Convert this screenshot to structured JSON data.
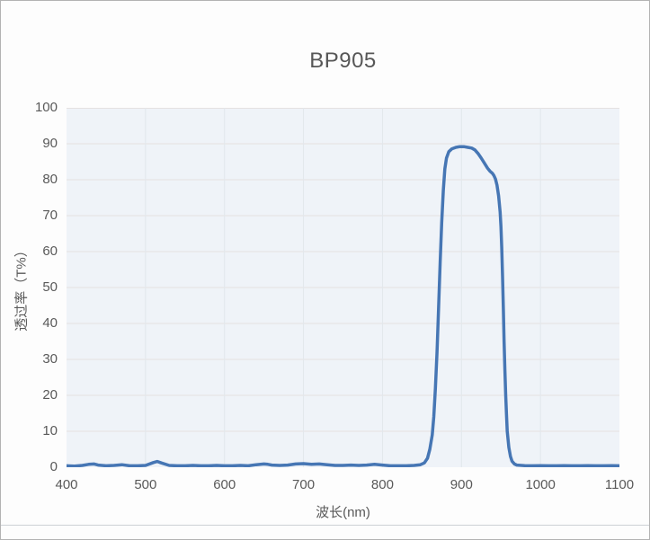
{
  "colors": {
    "line": "#4676b4",
    "plot_bg": "#eff3f8",
    "h_grid": "#e5e1e1",
    "v_grid": "#e2e7ec",
    "text": "#595959",
    "page_border": "#b3b3b3",
    "bottom_rule": "#ccd1d5"
  },
  "chart_data": {
    "type": "line",
    "title": "BP905",
    "xlabel": "波长(nm)",
    "ylabel": "透过率（T%）",
    "xlim": [
      400,
      1100
    ],
    "ylim": [
      0,
      100
    ],
    "x_ticks": [
      400,
      500,
      600,
      700,
      800,
      900,
      1000,
      1100
    ],
    "y_ticks": [
      0,
      10,
      20,
      30,
      40,
      50,
      60,
      70,
      80,
      90,
      100
    ],
    "grid": true,
    "legend": false,
    "series": [
      {
        "name": "BP905 transmittance",
        "points": [
          [
            400,
            0.4
          ],
          [
            410,
            0.3
          ],
          [
            420,
            0.5
          ],
          [
            428,
            0.8
          ],
          [
            435,
            0.9
          ],
          [
            440,
            0.6
          ],
          [
            450,
            0.4
          ],
          [
            460,
            0.5
          ],
          [
            470,
            0.7
          ],
          [
            480,
            0.4
          ],
          [
            490,
            0.4
          ],
          [
            500,
            0.5
          ],
          [
            510,
            1.3
          ],
          [
            515,
            1.6
          ],
          [
            520,
            1.2
          ],
          [
            530,
            0.5
          ],
          [
            540,
            0.4
          ],
          [
            550,
            0.4
          ],
          [
            560,
            0.5
          ],
          [
            570,
            0.4
          ],
          [
            580,
            0.4
          ],
          [
            590,
            0.5
          ],
          [
            600,
            0.4
          ],
          [
            610,
            0.4
          ],
          [
            620,
            0.5
          ],
          [
            630,
            0.4
          ],
          [
            640,
            0.7
          ],
          [
            650,
            0.9
          ],
          [
            655,
            0.8
          ],
          [
            660,
            0.6
          ],
          [
            670,
            0.5
          ],
          [
            680,
            0.6
          ],
          [
            690,
            0.9
          ],
          [
            700,
            1.0
          ],
          [
            710,
            0.8
          ],
          [
            720,
            0.9
          ],
          [
            730,
            0.7
          ],
          [
            740,
            0.5
          ],
          [
            750,
            0.5
          ],
          [
            760,
            0.6
          ],
          [
            770,
            0.5
          ],
          [
            780,
            0.6
          ],
          [
            790,
            0.8
          ],
          [
            800,
            0.6
          ],
          [
            810,
            0.4
          ],
          [
            820,
            0.4
          ],
          [
            830,
            0.4
          ],
          [
            840,
            0.5
          ],
          [
            848,
            0.7
          ],
          [
            853,
            1.2
          ],
          [
            857,
            2.5
          ],
          [
            860,
            5
          ],
          [
            863,
            9
          ],
          [
            865,
            14
          ],
          [
            867,
            22
          ],
          [
            869,
            32
          ],
          [
            871,
            44
          ],
          [
            873,
            57
          ],
          [
            875,
            68
          ],
          [
            877,
            77
          ],
          [
            879,
            83
          ],
          [
            881,
            86
          ],
          [
            884,
            87.8
          ],
          [
            888,
            88.6
          ],
          [
            893,
            89
          ],
          [
            898,
            89.2
          ],
          [
            903,
            89.2
          ],
          [
            908,
            89
          ],
          [
            913,
            88.8
          ],
          [
            917,
            88.3
          ],
          [
            921,
            87.3
          ],
          [
            925,
            86
          ],
          [
            929,
            84.6
          ],
          [
            933,
            83.2
          ],
          [
            936,
            82.4
          ],
          [
            939,
            81.8
          ],
          [
            941,
            81.2
          ],
          [
            943,
            80.2
          ],
          [
            945,
            78.5
          ],
          [
            947,
            75.5
          ],
          [
            949,
            71
          ],
          [
            950,
            67
          ],
          [
            951,
            61
          ],
          [
            952,
            53
          ],
          [
            953,
            44
          ],
          [
            954,
            35
          ],
          [
            955,
            27
          ],
          [
            956,
            20
          ],
          [
            957,
            14.5
          ],
          [
            958,
            10
          ],
          [
            960,
            5.5
          ],
          [
            962,
            3
          ],
          [
            964,
            1.7
          ],
          [
            967,
            0.9
          ],
          [
            970,
            0.6
          ],
          [
            980,
            0.45
          ],
          [
            990,
            0.4
          ],
          [
            1000,
            0.45
          ],
          [
            1010,
            0.4
          ],
          [
            1020,
            0.4
          ],
          [
            1030,
            0.45
          ],
          [
            1040,
            0.4
          ],
          [
            1050,
            0.4
          ],
          [
            1060,
            0.45
          ],
          [
            1070,
            0.4
          ],
          [
            1080,
            0.4
          ],
          [
            1090,
            0.45
          ],
          [
            1100,
            0.4
          ]
        ]
      }
    ]
  }
}
